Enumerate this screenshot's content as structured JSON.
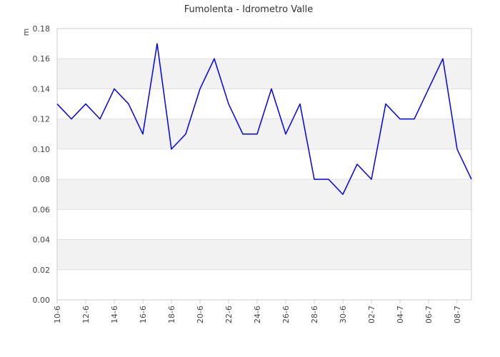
{
  "chart_data": {
    "type": "line",
    "title": "Fumolenta - Idrometro Valle",
    "ylabel": "m",
    "xlabel": "",
    "ylim": [
      0,
      0.18
    ],
    "y_ticks": [
      "0.00",
      "0.02",
      "0.04",
      "0.06",
      "0.08",
      "0.10",
      "0.12",
      "0.14",
      "0.16",
      "0.18"
    ],
    "x_tick_labels": [
      "10-6",
      "12-6",
      "14-6",
      "16-6",
      "18-6",
      "20-6",
      "22-6",
      "24-6",
      "26-6",
      "28-6",
      "30-6",
      "02-7",
      "04-7",
      "06-7",
      "08-7"
    ],
    "x": [
      "10-6",
      "11-6",
      "12-6",
      "13-6",
      "14-6",
      "15-6",
      "16-6",
      "17-6",
      "18-6",
      "19-6",
      "20-6",
      "21-6",
      "22-6",
      "23-6",
      "24-6",
      "25-6",
      "26-6",
      "27-6",
      "28-6",
      "29-6",
      "30-6",
      "01-7",
      "02-7",
      "03-7",
      "04-7",
      "05-7",
      "06-7",
      "07-7",
      "08-7",
      "09-7"
    ],
    "series": [
      {
        "color": "#0000ff",
        "values": [
          0.13,
          0.12,
          0.13,
          0.12,
          0.14,
          0.13,
          0.11,
          0.17,
          0.1,
          0.11,
          0.14,
          0.16,
          0.13,
          0.11,
          0.11,
          0.14,
          0.11,
          0.13,
          0.08,
          0.08,
          0.07,
          0.09,
          0.08,
          0.13,
          0.12,
          0.12,
          0.14,
          0.16,
          0.1,
          0.08
        ]
      }
    ],
    "grid": true,
    "band_color": "#f2f2f2",
    "grid_color": "#e0e0e0"
  }
}
